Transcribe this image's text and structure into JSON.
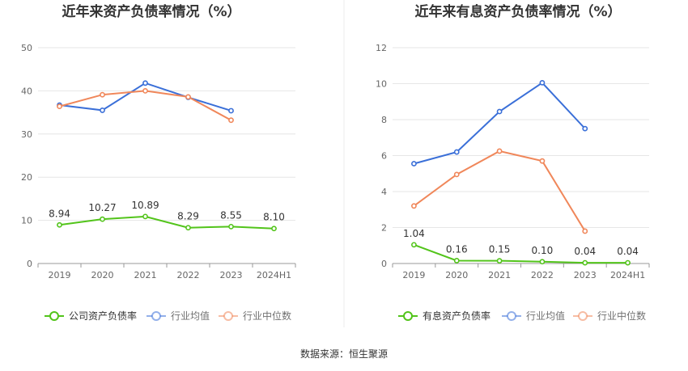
{
  "footer": {
    "source": "数据来源：恒生聚源"
  },
  "chart_data": [
    {
      "type": "line",
      "title": "近年来资产负债率情况（%）",
      "categories": [
        "2019",
        "2020",
        "2021",
        "2022",
        "2023",
        "2024H1"
      ],
      "ylim": [
        0,
        50
      ],
      "yticks": [
        0,
        10,
        20,
        30,
        40,
        50
      ],
      "grid": true,
      "legend_position": "bottom",
      "series": [
        {
          "name": "公司资产负债率",
          "color": "#52c41a",
          "values": [
            8.94,
            10.27,
            10.89,
            8.29,
            8.55,
            8.1
          ],
          "labels": [
            "8.94",
            "10.27",
            "10.89",
            "8.29",
            "8.55",
            "8.10"
          ]
        },
        {
          "name": "行业均值",
          "color": "#3a6fd8",
          "values": [
            36.7,
            35.5,
            41.8,
            38.5,
            35.4,
            null
          ]
        },
        {
          "name": "行业中位数",
          "color": "#f0875a",
          "values": [
            36.4,
            39.1,
            40.0,
            38.6,
            33.2,
            null
          ]
        }
      ]
    },
    {
      "type": "line",
      "title": "近年来有息资产负债率情况（%）",
      "categories": [
        "2019",
        "2020",
        "2021",
        "2022",
        "2023",
        "2024H1"
      ],
      "ylim": [
        0,
        12
      ],
      "yticks": [
        0,
        2,
        4,
        6,
        8,
        10,
        12
      ],
      "grid": true,
      "legend_position": "bottom",
      "series": [
        {
          "name": "有息资产负债率",
          "color": "#52c41a",
          "values": [
            1.04,
            0.16,
            0.15,
            0.1,
            0.04,
            0.04
          ],
          "labels": [
            "1.04",
            "0.16",
            "0.15",
            "0.10",
            "0.04",
            "0.04"
          ]
        },
        {
          "name": "行业均值",
          "color": "#3a6fd8",
          "values": [
            5.55,
            6.2,
            8.45,
            10.05,
            7.5,
            null
          ]
        },
        {
          "name": "行业中位数",
          "color": "#f0875a",
          "values": [
            3.2,
            4.95,
            6.25,
            5.7,
            1.8,
            null
          ]
        }
      ]
    }
  ]
}
